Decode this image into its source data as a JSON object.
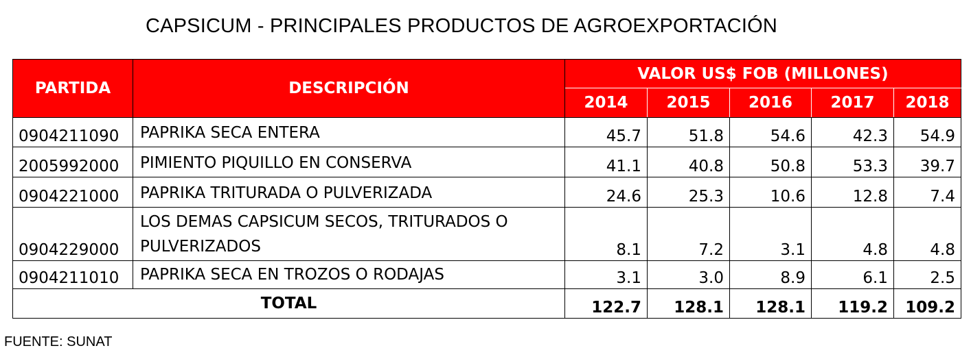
{
  "title": "CAPSICUM - PRINCIPALES PRODUCTOS DE AGROEXPORTACIÓN",
  "header": {
    "partida": "PARTIDA",
    "descripcion": "DESCRIPCIÓN",
    "valor_group": "VALOR US$ FOB (MILLONES)",
    "years": [
      "2014",
      "2015",
      "2016",
      "2017",
      "2018"
    ]
  },
  "rows": [
    {
      "partida": "0904211090",
      "descripcion": "PAPRIKA SECA ENTERA",
      "values": [
        "45.7",
        "51.8",
        "54.6",
        "42.3",
        "54.9"
      ]
    },
    {
      "partida": "2005992000",
      "descripcion": "PIMIENTO PIQUILLO EN CONSERVA",
      "values": [
        "41.1",
        "40.8",
        "50.8",
        "53.3",
        "39.7"
      ]
    },
    {
      "partida": "0904221000",
      "descripcion": "PAPRIKA TRITURADA O PULVERIZADA",
      "values": [
        "24.6",
        "25.3",
        "10.6",
        "12.8",
        "7.4"
      ]
    },
    {
      "partida": "0904229000",
      "descripcion": "LOS DEMAS CAPSICUM SECOS, TRITURADOS O PULVERIZADOS",
      "values": [
        "8.1",
        "7.2",
        "3.1",
        "4.8",
        "4.8"
      ]
    },
    {
      "partida": "0904211010",
      "descripcion": "PAPRIKA SECA EN TROZOS O RODAJAS",
      "values": [
        "3.1",
        "3.0",
        "8.9",
        "6.1",
        "2.5"
      ]
    }
  ],
  "total": {
    "label": "TOTAL",
    "values": [
      "122.7",
      "128.1",
      "128.1",
      "119.2",
      "109.2"
    ]
  },
  "source": "FUENTE: SUNAT",
  "colors": {
    "header_bg": "#ff0000",
    "header_text": "#ffffff"
  }
}
